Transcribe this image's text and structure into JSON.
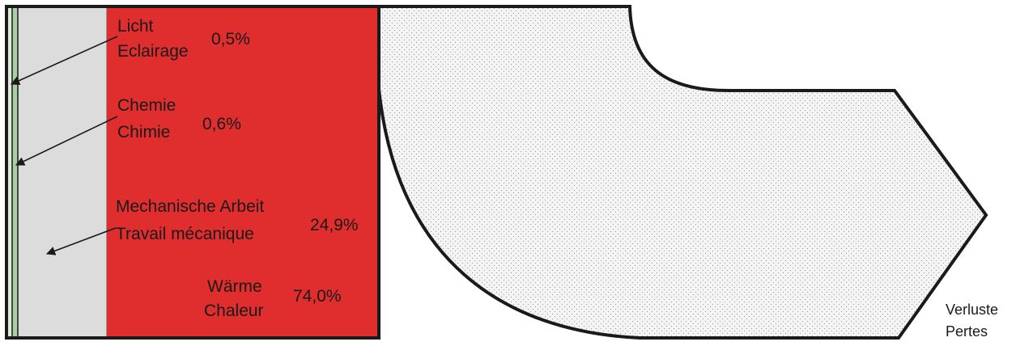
{
  "diagram": {
    "categories": [
      {
        "label_de": "Licht",
        "label_fr": "Eclairage",
        "percent": "0,5%"
      },
      {
        "label_de": "Chemie",
        "label_fr": "Chimie",
        "percent": "0,6%"
      },
      {
        "label_de": "Mechanische Arbeit",
        "label_fr": "Travail mécanique",
        "percent": "24,9%"
      },
      {
        "label_de": "Wärme",
        "label_fr": "Chaleur",
        "percent": "74,0%"
      }
    ],
    "losses": {
      "label_de": "Verluste",
      "label_fr": "Pertes"
    },
    "colors": {
      "heat": "#e02d2d",
      "mechanical": "#dcdcdc",
      "light": "#9fc99a",
      "loss_fill": "#f2f2f2",
      "stroke": "#1a1a1a"
    }
  }
}
